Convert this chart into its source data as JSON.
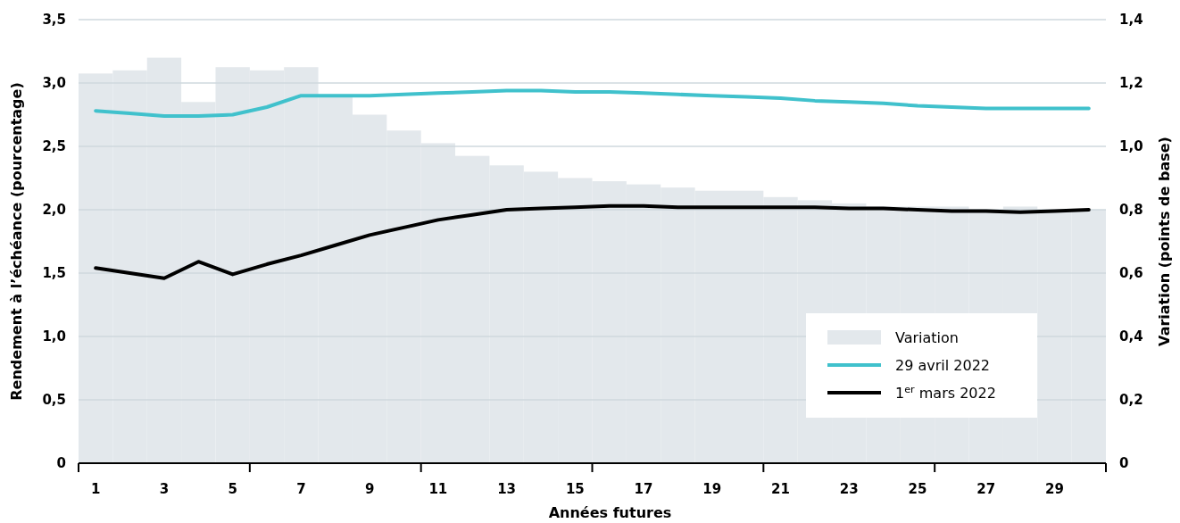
{
  "chart_data": {
    "type": "line",
    "xlabel": "Années futures",
    "ylabel": "Rendement à l’échéance (pourcentage)",
    "y2label": "Variation (points de base)",
    "x": [
      1,
      2,
      3,
      4,
      5,
      6,
      7,
      8,
      9,
      10,
      11,
      12,
      13,
      14,
      15,
      16,
      17,
      18,
      19,
      20,
      21,
      22,
      23,
      24,
      25,
      26,
      27,
      28,
      29,
      30
    ],
    "xlim": [
      0.5,
      30.5
    ],
    "xticks": [
      {
        "value": 0.5,
        "label": null
      },
      1,
      3,
      5,
      {
        "value": 5.5,
        "label": null
      },
      7,
      9,
      {
        "value": 10.5,
        "label": null
      },
      11,
      13,
      15,
      {
        "value": 15.5,
        "label": null
      },
      17,
      19,
      {
        "value": 20.5,
        "label": null
      },
      21,
      23,
      25,
      {
        "value": 25.5,
        "label": null
      },
      27,
      29,
      {
        "value": 30.5,
        "label": null
      }
    ],
    "ylim": [
      0,
      3.5
    ],
    "yticks": [
      {
        "value": 0,
        "label": "0"
      },
      {
        "value": 0.5,
        "label": "0,5"
      },
      {
        "value": 1,
        "label": "1,0"
      },
      {
        "value": 1.5,
        "label": "1,5"
      },
      {
        "value": 2,
        "label": "2,0"
      },
      {
        "value": 2.5,
        "label": "2,5"
      },
      {
        "value": 3,
        "label": "3,0"
      },
      {
        "value": 3.5,
        "label": "3,5"
      }
    ],
    "y2lim": [
      0,
      1.4
    ],
    "y2ticks": [
      {
        "value": 0,
        "label": "0"
      },
      {
        "value": 0.2,
        "label": "0,2"
      },
      {
        "value": 0.4,
        "label": "0,4"
      },
      {
        "value": 0.6,
        "label": "0,6"
      },
      {
        "value": 0.8,
        "label": "0,8"
      },
      {
        "value": 1,
        "label": "1,0"
      },
      {
        "value": 1.2,
        "label": "1,2"
      },
      {
        "value": 1.4,
        "label": "1,4"
      }
    ],
    "grid": "y",
    "legend": "bottom right",
    "series": [
      {
        "name": "Variation",
        "type": "bar",
        "axis": "y2",
        "color": "#e3e8ec",
        "values": [
          1.23,
          1.24,
          1.28,
          1.14,
          1.25,
          1.24,
          1.25,
          1.16,
          1.1,
          1.05,
          1.01,
          0.97,
          0.94,
          0.92,
          0.9,
          0.89,
          0.88,
          0.87,
          0.86,
          0.86,
          0.84,
          0.83,
          0.82,
          0.81,
          0.81,
          0.81,
          0.8,
          0.81,
          0.8,
          0.8
        ]
      },
      {
        "name": "29 avril 2022",
        "color": "#40c1cc",
        "values": [
          2.78,
          2.76,
          2.74,
          2.74,
          2.75,
          2.81,
          2.9,
          2.9,
          2.9,
          2.91,
          2.92,
          2.93,
          2.94,
          2.94,
          2.93,
          2.93,
          2.92,
          2.91,
          2.9,
          2.89,
          2.88,
          2.86,
          2.85,
          2.84,
          2.82,
          2.81,
          2.8,
          2.8,
          2.8,
          2.8
        ]
      },
      {
        "name": "1$^{er}$ mars 2022",
        "color": "#000000",
        "values": [
          1.54,
          1.5,
          1.46,
          1.59,
          1.49,
          1.57,
          1.64,
          1.72,
          1.8,
          1.86,
          1.92,
          1.96,
          2.0,
          2.01,
          2.02,
          2.03,
          2.03,
          2.02,
          2.02,
          2.02,
          2.02,
          2.02,
          2.01,
          2.01,
          2.0,
          1.99,
          1.99,
          1.98,
          1.99,
          2.0
        ]
      }
    ]
  }
}
